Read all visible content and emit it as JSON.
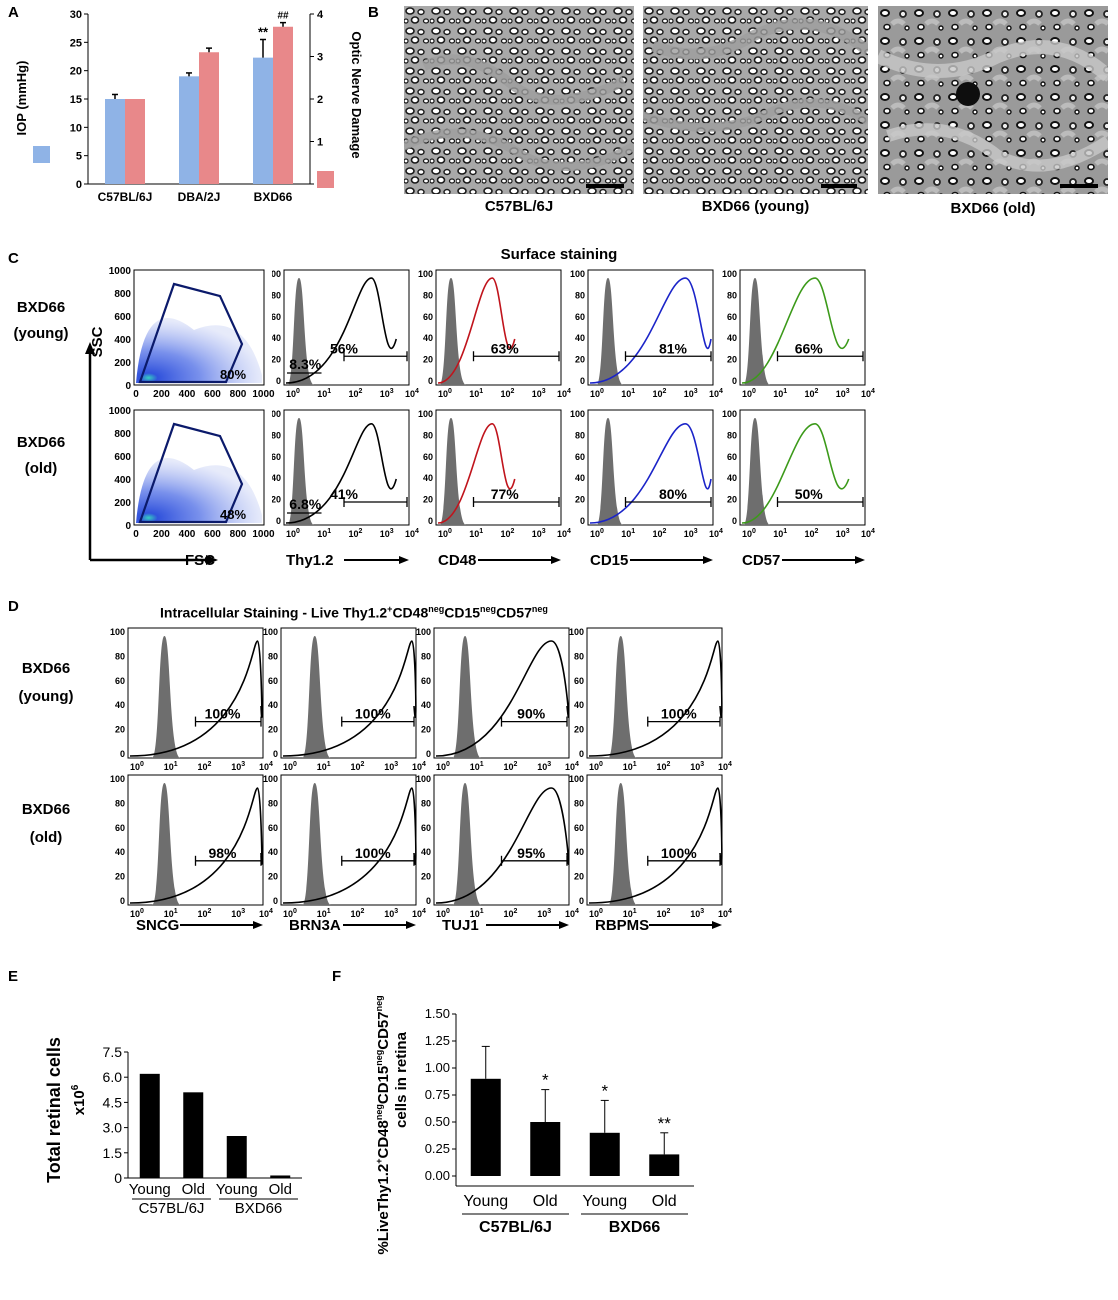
{
  "panels": {
    "A": {
      "letter": "A",
      "left_axis_label": "IOP (mmHg)",
      "right_axis_label": "Optic Nerve Damage",
      "sig_bxd66_iop": "**",
      "sig_bxd66_damage": "##",
      "colors": {
        "iop": "#8fb3e6",
        "damage": "#e8888a"
      }
    },
    "B": {
      "letter": "B",
      "images": [
        {
          "caption": "C57BL/6J"
        },
        {
          "caption": "BXD66 (young)"
        },
        {
          "caption": "BXD66 (old)"
        }
      ]
    },
    "C": {
      "letter": "C",
      "title": "Surface staining",
      "row_labels": [
        {
          "line1": "BXD66",
          "line2": "(young)"
        },
        {
          "line1": "BXD66",
          "line2": "(old)"
        }
      ],
      "ssc_label": "SSC",
      "fsc_label": "FSC",
      "scatter_percents": [
        "80%",
        "48%"
      ],
      "scatter_y_ticks": [
        "1000",
        "800",
        "600",
        "400",
        "200",
        "0"
      ],
      "scatter_x_ticks": [
        "0",
        "200",
        "400",
        "600",
        "800",
        "1000"
      ],
      "markers": [
        {
          "name": "Thy1.2",
          "color": "#000000",
          "young": "56%",
          "old": "41%",
          "low_young": "8.3%",
          "low_old": "6.8%"
        },
        {
          "name": "CD48",
          "color": "#c0141c",
          "young": "63%",
          "old": "77%"
        },
        {
          "name": "CD15",
          "color": "#1b24c8",
          "young": "81%",
          "old": "80%"
        },
        {
          "name": "CD57",
          "color": "#3c9a1a",
          "young": "66%",
          "old": "50%"
        }
      ],
      "y_ticks": [
        "100",
        "80",
        "60",
        "40",
        "20",
        "0"
      ]
    },
    "D": {
      "letter": "D",
      "title_prefix": "Intracellular Staining - Live Thy1.2",
      "title_sup1": "+",
      "title_cd48": "CD48",
      "title_sup2": "neg",
      "title_cd15": "CD15",
      "title_sup3": "neg",
      "title_cd57": "CD57",
      "title_sup4": "neg",
      "row_labels": [
        {
          "line1": "BXD66",
          "line2": "(young)"
        },
        {
          "line1": "BXD66",
          "line2": "(old)"
        }
      ],
      "markers": [
        {
          "name": "SNCG",
          "young": "100%",
          "old": "98%"
        },
        {
          "name": "BRN3A",
          "young": "100%",
          "old": "100%"
        },
        {
          "name": "TUJ1",
          "young": "90%",
          "old": "95%"
        },
        {
          "name": "RBPMS",
          "young": "100%",
          "old": "100%"
        }
      ]
    },
    "E": {
      "letter": "E",
      "ylabel": "Total retinal cells",
      "ylabel2": "x10",
      "ylabel2_sup": "6",
      "group_labels": [
        "C57BL/6J",
        "BXD66"
      ]
    },
    "F": {
      "letter": "F",
      "ylabel_line1_a": "%LiveThy1.2",
      "ylabel_line1_b": "+",
      "ylabel_line1_c": "CD48",
      "ylabel_line1_d": "neg",
      "ylabel_line1_e": "CD15",
      "ylabel_line1_f": "neg",
      "ylabel_line1_g": "CD57",
      "ylabel_line1_h": "neg",
      "ylabel_line2": "cells in retina",
      "group_labels": [
        "C57BL/6J",
        "BXD66"
      ]
    }
  },
  "chart_data": [
    {
      "type": "bar",
      "panel": "A",
      "categories": [
        "C57BL/6J",
        "DBA/2J",
        "BXD66"
      ],
      "series": [
        {
          "name": "IOP (mmHg)",
          "axis": "left",
          "values": [
            15,
            19,
            22.3
          ],
          "errors": [
            0.8,
            0.6,
            3.2
          ]
        },
        {
          "name": "Optic Nerve Damage",
          "axis": "right",
          "values": [
            2,
            3.1,
            3.7
          ],
          "errors": [
            0,
            0.05,
            0.05
          ]
        }
      ],
      "ylim_left": [
        0,
        30
      ],
      "yticks_left": [
        0,
        5,
        10,
        15,
        20,
        25,
        30
      ],
      "ylim_right": [
        0,
        4
      ],
      "yticks_right": [
        0,
        1,
        2,
        3,
        4
      ]
    },
    {
      "type": "bar",
      "panel": "E",
      "categories": [
        "Young",
        "Old",
        "Young",
        "Old"
      ],
      "values": [
        6.2,
        5.1,
        2.5,
        0.15
      ],
      "ylim": [
        0,
        7.5
      ],
      "yticks": [
        "0",
        "1.5",
        "3.0",
        "4.5",
        "6.0",
        "7.5"
      ]
    },
    {
      "type": "bar",
      "panel": "F",
      "categories": [
        "Young",
        "Old",
        "Young",
        "Old"
      ],
      "values": [
        0.9,
        0.5,
        0.4,
        0.2
      ],
      "errors": [
        0.3,
        0.3,
        0.3,
        0.2
      ],
      "significance": [
        "",
        "*",
        "*",
        "**"
      ],
      "ylim": [
        0,
        1.5
      ],
      "yticks": [
        "0.00",
        "0.25",
        "0.50",
        "0.75",
        "1.00",
        "1.25",
        "1.50"
      ]
    }
  ]
}
